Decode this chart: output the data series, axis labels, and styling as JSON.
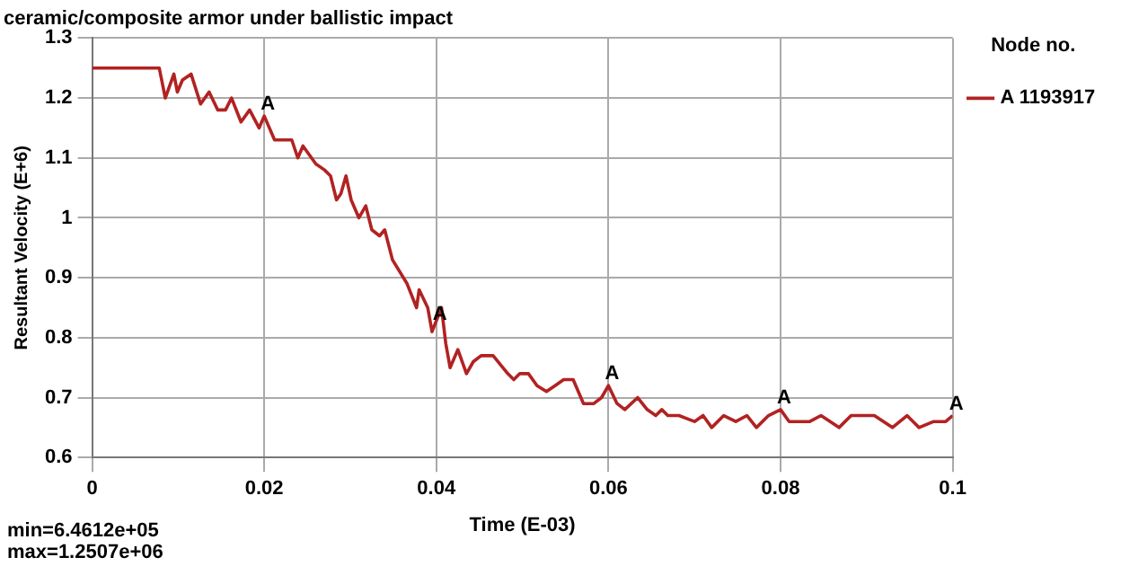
{
  "chart_data": {
    "type": "line",
    "title": "ceramic/composite armor under ballistic impact",
    "xlabel": "Time (E-03)",
    "ylabel": "Resultant Velocity (E+6)",
    "legend_title": "Node no.",
    "legend": "right",
    "grid": true,
    "marker": "none",
    "line_style": "solid",
    "xlim": [
      0,
      0.1
    ],
    "xticks": [
      0,
      0.02,
      0.04,
      0.06,
      0.08,
      0.1
    ],
    "ylim": [
      0.6,
      1.3
    ],
    "yticks": [
      0.6,
      0.7,
      0.8,
      0.9,
      1,
      1.1,
      1.2,
      1.3
    ],
    "series": [
      {
        "name": "A 1193917",
        "color": "#b22222",
        "x": [
          0,
          0.0064,
          0.0078,
          0.0085,
          0.0095,
          0.0099,
          0.0105,
          0.0115,
          0.0126,
          0.0136,
          0.0146,
          0.0155,
          0.0162,
          0.0173,
          0.0183,
          0.0194,
          0.02,
          0.0212,
          0.0222,
          0.0232,
          0.0239,
          0.0245,
          0.026,
          0.027,
          0.0277,
          0.0284,
          0.0289,
          0.0295,
          0.0301,
          0.031,
          0.0318,
          0.0325,
          0.0334,
          0.034,
          0.0349,
          0.0366,
          0.0377,
          0.038,
          0.039,
          0.0395,
          0.0406,
          0.0411,
          0.0416,
          0.0425,
          0.0435,
          0.0443,
          0.0452,
          0.0459,
          0.0466,
          0.0483,
          0.049,
          0.0497,
          0.0507,
          0.0517,
          0.0528,
          0.0538,
          0.0548,
          0.0559,
          0.0571,
          0.0583,
          0.0592,
          0.06,
          0.061,
          0.0619,
          0.0634,
          0.0645,
          0.0655,
          0.0662,
          0.0669,
          0.0682,
          0.07,
          0.071,
          0.072,
          0.0734,
          0.0748,
          0.0761,
          0.0772,
          0.0786,
          0.08,
          0.081,
          0.082,
          0.0834,
          0.0847,
          0.0868,
          0.0882,
          0.0909,
          0.093,
          0.0947,
          0.0961,
          0.0978,
          0.0992,
          0.1
        ],
        "values": [
          1.25,
          1.25,
          1.25,
          1.2,
          1.24,
          1.21,
          1.23,
          1.24,
          1.19,
          1.21,
          1.18,
          1.18,
          1.2,
          1.16,
          1.18,
          1.15,
          1.17,
          1.13,
          1.13,
          1.13,
          1.1,
          1.12,
          1.09,
          1.08,
          1.07,
          1.03,
          1.04,
          1.07,
          1.03,
          1,
          1.02,
          0.98,
          0.97,
          0.98,
          0.93,
          0.89,
          0.85,
          0.88,
          0.85,
          0.81,
          0.85,
          0.79,
          0.75,
          0.78,
          0.74,
          0.76,
          0.77,
          0.77,
          0.77,
          0.74,
          0.73,
          0.74,
          0.74,
          0.72,
          0.71,
          0.72,
          0.73,
          0.73,
          0.69,
          0.69,
          0.7,
          0.72,
          0.69,
          0.68,
          0.7,
          0.68,
          0.67,
          0.68,
          0.67,
          0.67,
          0.66,
          0.67,
          0.65,
          0.67,
          0.66,
          0.67,
          0.65,
          0.67,
          0.68,
          0.66,
          0.66,
          0.66,
          0.67,
          0.65,
          0.67,
          0.67,
          0.65,
          0.67,
          0.65,
          0.66,
          0.66,
          0.67
        ]
      }
    ],
    "annotations": [
      {
        "text": "A",
        "x": 0.02,
        "y": 1.17
      },
      {
        "text": "A",
        "x": 0.04,
        "y": 0.82
      },
      {
        "text": "A",
        "x": 0.06,
        "y": 0.72
      },
      {
        "text": "A",
        "x": 0.08,
        "y": 0.68
      },
      {
        "text": "A",
        "x": 0.1,
        "y": 0.67
      },
      "min=6.4612e+05",
      "max=1.2507e+06"
    ]
  }
}
